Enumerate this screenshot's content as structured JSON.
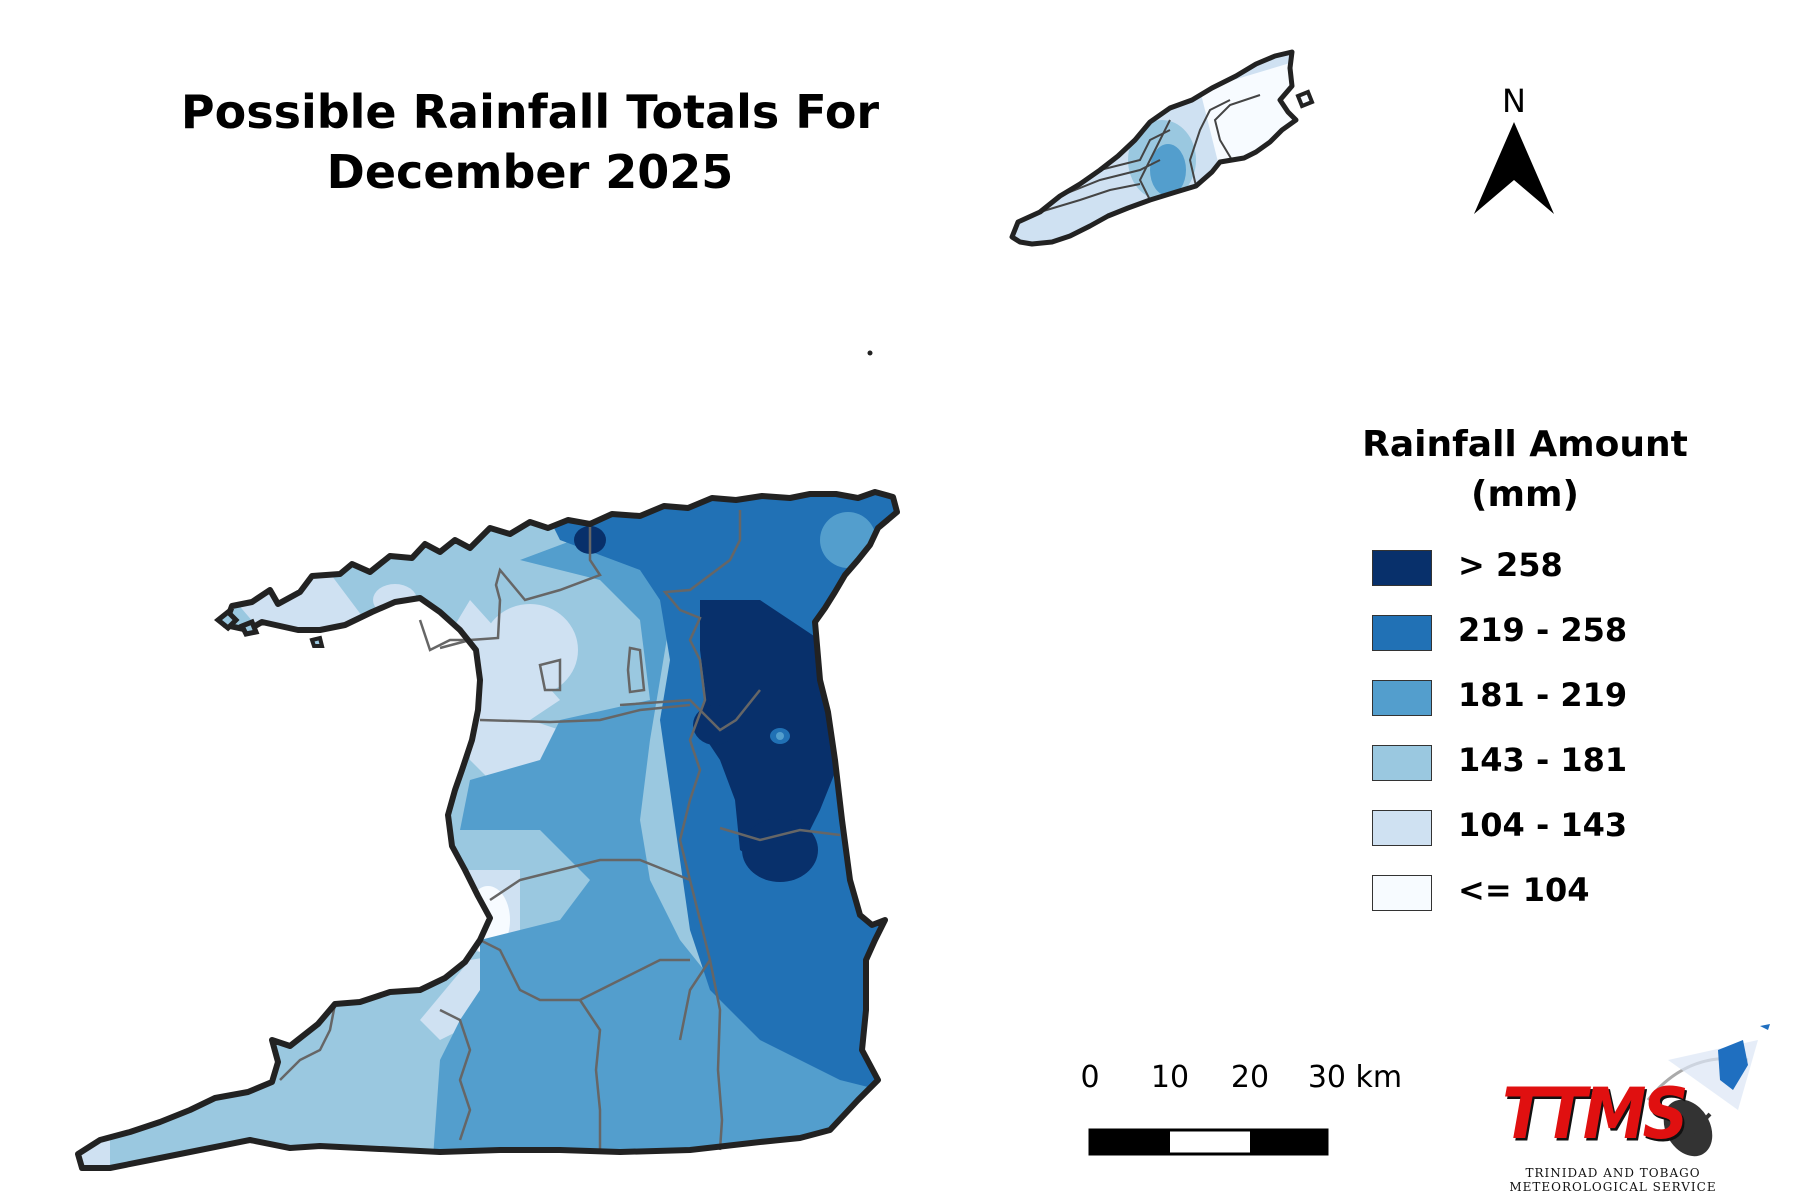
{
  "title": {
    "line1": "Possible Rainfall Totals For",
    "line2": "December 2025"
  },
  "north_arrow": {
    "label": "N"
  },
  "legend": {
    "title_line1": "Rainfall Amount",
    "title_line2": "(mm)",
    "items": [
      {
        "label": "> 258",
        "color": "#08306b"
      },
      {
        "label": "219 - 258",
        "color": "#2171b5"
      },
      {
        "label": "181 - 219",
        "color": "#539ecd"
      },
      {
        "label": "143 - 181",
        "color": "#9ac8e0"
      },
      {
        "label": "104 - 143",
        "color": "#cfe1f2"
      },
      {
        "label": "<= 104",
        "color": "#f7fbff"
      }
    ]
  },
  "scale_bar": {
    "labels": [
      "0",
      "10",
      "20",
      "30 km"
    ]
  },
  "logo": {
    "name": "TTMS",
    "subtitle_line1": "TRINIDAD AND TOBAGO",
    "subtitle_line2": "METEOROLOGICAL SERVICE",
    "colors": {
      "text": "#e01010",
      "accent": "#1f6fc0"
    }
  }
}
